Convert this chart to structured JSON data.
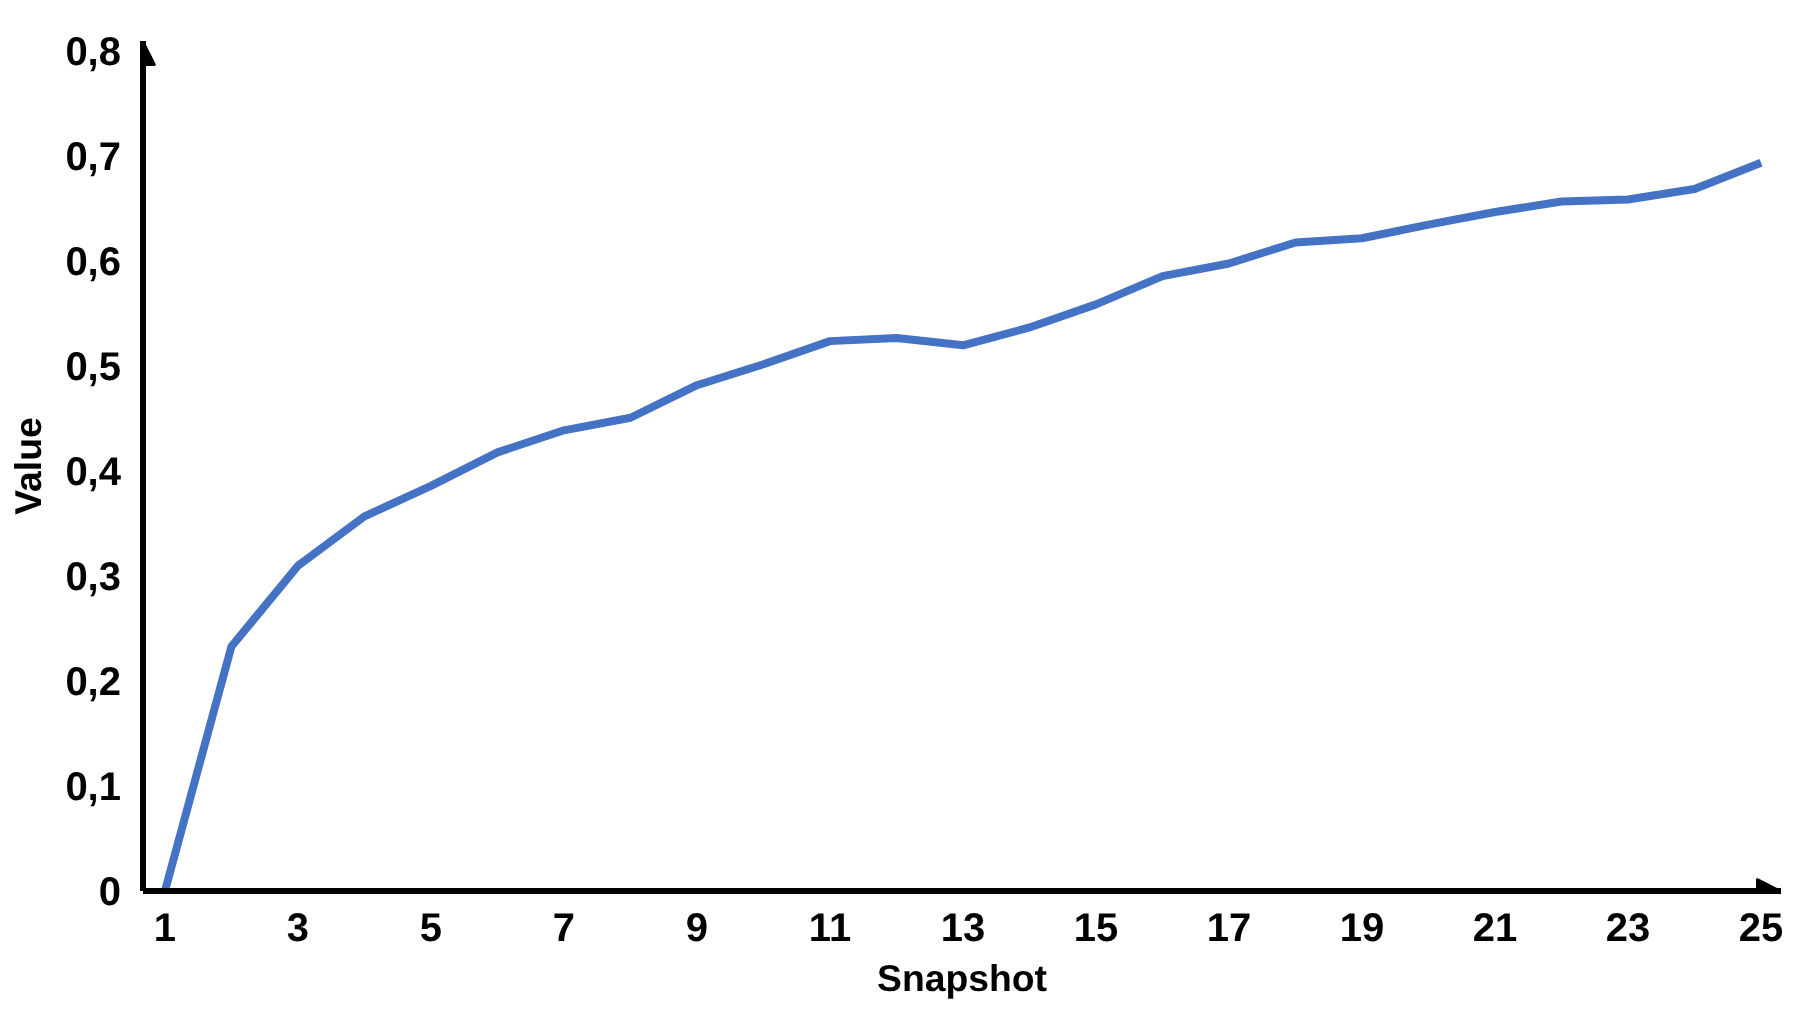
{
  "chart_data": {
    "type": "line",
    "xlabel": "Snapshot",
    "ylabel": "Value",
    "x": [
      1,
      2,
      3,
      4,
      5,
      6,
      7,
      8,
      9,
      10,
      11,
      12,
      13,
      14,
      15,
      16,
      17,
      18,
      19,
      20,
      21,
      22,
      23,
      24,
      25
    ],
    "series": [
      {
        "color": "#4472c4",
        "values": [
          0,
          0.233,
          0.31,
          0.357,
          0.386,
          0.418,
          0.439,
          0.451,
          0.482,
          0.502,
          0.524,
          0.527,
          0.52,
          0.537,
          0.559,
          0.586,
          0.598,
          0.618,
          0.622,
          0.635,
          0.647,
          0.657,
          0.659,
          0.669,
          0.694
        ]
      }
    ],
    "xlim": [
      0.67,
      25.3
    ],
    "ylim": [
      0,
      0.81
    ],
    "xticks": [
      1,
      3,
      5,
      7,
      9,
      11,
      13,
      15,
      17,
      19,
      21,
      23,
      25
    ],
    "yticks": [
      0,
      {
        "value": 0.1,
        "label": "0,1"
      },
      {
        "value": 0.2,
        "label": "0,2"
      },
      {
        "value": 0.3,
        "label": "0,3"
      },
      {
        "value": 0.4,
        "label": "0,4"
      },
      {
        "value": 0.5,
        "label": "0,5"
      },
      {
        "value": 0.6,
        "label": "0,6"
      },
      {
        "value": 0.7,
        "label": "0,7"
      },
      {
        "value": 0.8,
        "label": "0,8"
      }
    ],
    "grid": false,
    "marker": "none",
    "line_style": "solid"
  }
}
